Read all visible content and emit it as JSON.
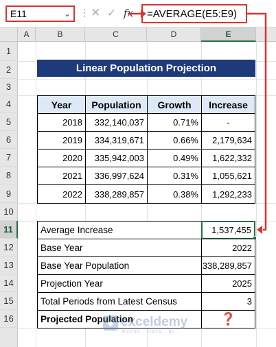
{
  "name_box": "E11",
  "formula": "=AVERAGE(E5:E9)",
  "columns": [
    "A",
    "B",
    "C",
    "D",
    "E"
  ],
  "rows": [
    "1",
    "2",
    "3",
    "4",
    "5",
    "6",
    "7",
    "8",
    "9",
    "10",
    "11",
    "12",
    "13",
    "14",
    "15",
    "16"
  ],
  "title": "Linear Population Projection",
  "table1": {
    "headers": [
      "Year",
      "Population",
      "Growth",
      "Increase"
    ],
    "rows": [
      [
        "2018",
        "332,140,037",
        "0.71%",
        "-"
      ],
      [
        "2019",
        "334,319,671",
        "0.66%",
        "2,179,634"
      ],
      [
        "2020",
        "335,942,003",
        "0.49%",
        "1,622,332"
      ],
      [
        "2021",
        "336,997,624",
        "0.31%",
        "1,055,621"
      ],
      [
        "2022",
        "338,289,857",
        "0.38%",
        "1,292,233"
      ]
    ]
  },
  "table2": [
    {
      "label": "Average Increase",
      "value": "1,537,455"
    },
    {
      "label": "Base Year",
      "value": "2022"
    },
    {
      "label": "Base Year Population",
      "value": "338,289,857"
    },
    {
      "label": "Projection Year",
      "value": "2025"
    },
    {
      "label": "Total Periods from Latest Census",
      "value": "3"
    },
    {
      "label": "Projected Population",
      "value": "❓"
    }
  ],
  "watermark": {
    "name": "exceldemy",
    "tagline": "EXCEL · DATA · BI"
  },
  "icons": {
    "cancel": "close-icon",
    "enter": "check-icon",
    "fx": "function-icon",
    "dropdown": "chevron-down-icon"
  },
  "colors": {
    "title_bg": "#1f3a7a",
    "header_bg": "#dde9f6",
    "highlight": "#e03030",
    "active": "#217346"
  }
}
